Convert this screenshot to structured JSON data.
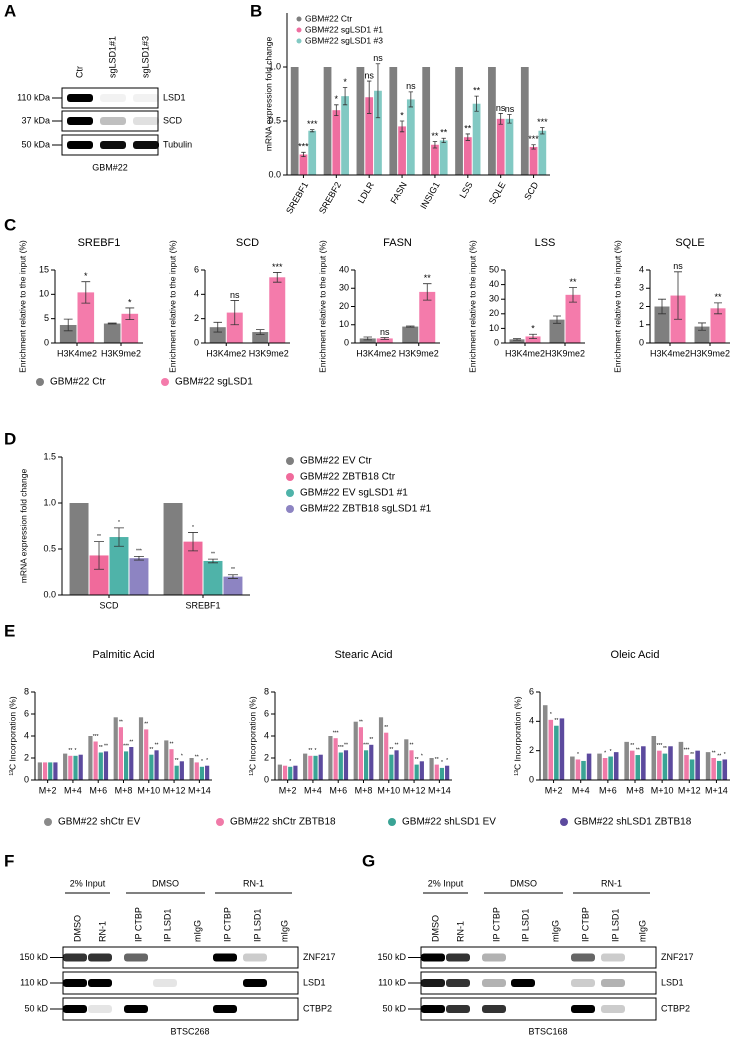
{
  "panel_labels": [
    "A",
    "B",
    "C",
    "D",
    "E",
    "F",
    "G"
  ],
  "blot_A": {
    "lanes": [
      "Ctr",
      "sgLSD1#1",
      "sgLSD1#3"
    ],
    "markers": [
      "110 kDa",
      "37 kDa",
      "50 kDa"
    ],
    "proteins": [
      "LSD1",
      "SCD",
      "Tubulin"
    ],
    "caption": "GBM#22"
  },
  "chart_data": [
    {
      "type": "bar",
      "y_label": "mRNA expression fold change",
      "legend": "top-left",
      "categories": [
        "SREBF1",
        "SREBF2",
        "LDLR",
        "FASN",
        "INSIG1",
        "LSS",
        "SQLE",
        "SCD"
      ],
      "ylim": [
        0,
        1.5
      ],
      "yticks": [
        {
          "value": 0,
          "label": "0.0"
        },
        {
          "value": 0.5,
          "label": "0.5"
        },
        {
          "value": 1,
          "label": "1.0"
        }
      ],
      "series": [
        {
          "name": "GBM#22 Ctr",
          "color": "#7f7f7f",
          "values": [
            1,
            1,
            1,
            1,
            1,
            1,
            1,
            1
          ]
        },
        {
          "name": "GBM#22 sgLSD1 #1",
          "color": "#ef6ea0",
          "values": [
            0.19,
            0.6,
            0.72,
            0.45,
            0.28,
            0.35,
            0.52,
            0.26
          ],
          "errors": [
            0.02,
            0.05,
            0.15,
            0.05,
            0.03,
            0.03,
            0.05,
            0.02
          ],
          "significance": [
            "***",
            "*",
            "ns",
            "*",
            "**",
            "**",
            "ns",
            "***"
          ]
        },
        {
          "name": "GBM#22 sgLSD1 #3",
          "color": "#82c9c3",
          "values": [
            0.41,
            0.73,
            0.78,
            0.7,
            0.32,
            0.66,
            0.52,
            0.41
          ],
          "errors": [
            0.01,
            0.08,
            0.25,
            0.07,
            0.02,
            0.07,
            0.04,
            0.03
          ],
          "significance": [
            "***",
            "*",
            "ns",
            "ns",
            "**",
            "**",
            "ns",
            "***"
          ]
        }
      ]
    },
    {
      "type": "bar",
      "title": "SREBF1",
      "y_label": "Enrichment relative to the input (%)",
      "legend": "bottom",
      "categories": [
        "H3K4me2",
        "H3K9me2"
      ],
      "ylim": [
        0,
        15
      ],
      "yticks": [
        0,
        5,
        10,
        15
      ],
      "series": [
        {
          "name": "GBM#22 Ctr",
          "color": "#7f7f7f",
          "values": [
            3.7,
            4.0
          ],
          "errors": [
            1.2,
            0.1
          ]
        },
        {
          "name": "GBM#22 sgLSD1",
          "color": "#f47bab",
          "values": [
            10.4,
            6.0
          ],
          "errors": [
            2.2,
            1.2
          ],
          "significance": [
            "*",
            "*"
          ]
        }
      ]
    },
    {
      "type": "bar",
      "title": "SCD",
      "y_label": "Enrichment relative to the input (%)",
      "categories": [
        "H3K4me2",
        "H3K9me2"
      ],
      "ylim": [
        0,
        6
      ],
      "yticks": [
        0,
        2,
        4,
        6
      ],
      "series": [
        {
          "name": "GBM#22 Ctr",
          "color": "#7f7f7f",
          "values": [
            1.3,
            0.9
          ],
          "errors": [
            0.4,
            0.2
          ]
        },
        {
          "name": "GBM#22 sgLSD1",
          "color": "#f47bab",
          "values": [
            2.5,
            5.4
          ],
          "errors": [
            1.0,
            0.4
          ],
          "significance": [
            "ns",
            "***"
          ]
        }
      ]
    },
    {
      "type": "bar",
      "title": "FASN",
      "y_label": "Enrichment relative to the input (%)",
      "categories": [
        "H3K4me2",
        "H3K9me2"
      ],
      "ylim": [
        0,
        40
      ],
      "yticks": [
        0,
        10,
        20,
        30,
        40
      ],
      "series": [
        {
          "name": "GBM#22 Ctr",
          "color": "#7f7f7f",
          "values": [
            2.5,
            9.0
          ],
          "errors": [
            0.8,
            0.3
          ]
        },
        {
          "name": "GBM#22 sgLSD1",
          "color": "#f47bab",
          "values": [
            2.5,
            28
          ],
          "errors": [
            0.5,
            4.5
          ],
          "significance": [
            "ns",
            "**"
          ]
        }
      ]
    },
    {
      "type": "bar",
      "title": "LSS",
      "y_label": "Enrichment relative to the input (%)",
      "categories": [
        "H3K4me2",
        "H3K9me2"
      ],
      "ylim": [
        0,
        50
      ],
      "yticks": [
        0,
        10,
        20,
        30,
        40,
        50
      ],
      "series": [
        {
          "name": "GBM#22 Ctr",
          "color": "#7f7f7f",
          "values": [
            2.5,
            16
          ],
          "errors": [
            0.5,
            2.5
          ]
        },
        {
          "name": "GBM#22 sgLSD1",
          "color": "#f47bab",
          "values": [
            4.5,
            33
          ],
          "errors": [
            1.5,
            5
          ],
          "significance": [
            "*",
            "**"
          ]
        }
      ]
    },
    {
      "type": "bar",
      "title": "SQLE",
      "y_label": "Enrichment relative to the input (%)",
      "categories": [
        "H3K4me2",
        "H3K9me2"
      ],
      "ylim": [
        0,
        4
      ],
      "yticks": [
        0,
        1,
        2,
        3,
        4
      ],
      "series": [
        {
          "name": "GBM#22 Ctr",
          "color": "#7f7f7f",
          "values": [
            2.0,
            0.9
          ],
          "errors": [
            0.4,
            0.2
          ]
        },
        {
          "name": "GBM#22 sgLSD1",
          "color": "#f47bab",
          "values": [
            2.6,
            1.9
          ],
          "errors": [
            1.3,
            0.3
          ],
          "significance": [
            "ns",
            "**"
          ]
        }
      ]
    },
    {
      "type": "bar",
      "y_label": "mRNA expression fold change",
      "legend": "right",
      "categories": [
        "SCD",
        "SREBF1"
      ],
      "ylim": [
        0,
        1.5
      ],
      "yticks": [
        {
          "value": 0,
          "label": "0.0"
        },
        {
          "value": 0.5,
          "label": "0.5"
        },
        {
          "value": 1,
          "label": "1.0"
        },
        {
          "value": 1.5,
          "label": "1.5"
        }
      ],
      "series": [
        {
          "name": "GBM#22 EV Ctr",
          "color": "#7f7f7f",
          "values": [
            1,
            1
          ]
        },
        {
          "name": "GBM#22 ZBTB18 Ctr",
          "color": "#f06a9b",
          "values": [
            0.43,
            0.58
          ],
          "errors": [
            0.15,
            0.1
          ],
          "significance": [
            "**",
            "*"
          ]
        },
        {
          "name": "GBM#22 EV sgLSD1 #1",
          "color": "#4fb3a9",
          "values": [
            0.63,
            0.37
          ],
          "errors": [
            0.1,
            0.02
          ],
          "significance": [
            "*",
            "**"
          ]
        },
        {
          "name": "GBM#22 ZBTB18 sgLSD1 #1",
          "color": "#8d84c2",
          "values": [
            0.4,
            0.2
          ],
          "errors": [
            0.02,
            0.02
          ],
          "significance": [
            "***",
            "**"
          ]
        }
      ]
    },
    {
      "type": "bar",
      "title": "Palmitic Acid",
      "y_label": "¹³C Incorporation (%)",
      "legend": "bottom",
      "categories": [
        "M+2",
        "M+4",
        "M+6",
        "M+8",
        "M+10",
        "M+12",
        "M+14"
      ],
      "ylim": [
        0,
        8
      ],
      "yticks": [
        0,
        2,
        4,
        6,
        8
      ],
      "series": [
        {
          "name": "GBM#22 shCtr EV",
          "color": "#8a8a8a",
          "values": [
            1.6,
            2.4,
            4.0,
            5.7,
            5.7,
            3.6,
            2.0
          ]
        },
        {
          "name": "GBM#22 shCtr ZBTB18",
          "color": "#f07aa8",
          "values": [
            1.6,
            2.2,
            3.5,
            4.8,
            4.6,
            2.8,
            1.6
          ],
          "significance": [
            null,
            "**",
            "***",
            "**",
            "**",
            "**",
            "**"
          ]
        },
        {
          "name": "GBM#22 shLSD1 EV",
          "color": "#3aa395",
          "values": [
            1.6,
            2.2,
            2.5,
            2.6,
            2.3,
            1.3,
            1.2
          ],
          "significance": [
            null,
            "*",
            "**",
            "***",
            "**",
            "**",
            "*"
          ]
        },
        {
          "name": "GBM#22 shLSD1 ZBTB18",
          "color": "#5c4a9e",
          "values": [
            1.6,
            2.3,
            2.6,
            3.0,
            2.7,
            1.7,
            1.3
          ],
          "significance": [
            null,
            null,
            "**",
            "**",
            "**",
            "*",
            "*"
          ]
        }
      ]
    },
    {
      "type": "bar",
      "title": "Stearic Acid",
      "y_label": "¹³C Incorporation (%)",
      "categories": [
        "M+2",
        "M+4",
        "M+6",
        "M+8",
        "M+10",
        "M+12",
        "M+14"
      ],
      "ylim": [
        0,
        8
      ],
      "yticks": [
        0,
        2,
        4,
        6,
        8
      ],
      "series": [
        {
          "name": "GBM#22 shCtr EV",
          "color": "#8a8a8a",
          "values": [
            1.4,
            2.4,
            4.0,
            5.3,
            5.7,
            3.7,
            2.0
          ]
        },
        {
          "name": "GBM#22 shCtr ZBTB18",
          "color": "#f07aa8",
          "values": [
            1.3,
            2.2,
            3.8,
            4.8,
            4.3,
            2.7,
            1.4
          ],
          "significance": [
            null,
            "**",
            "***",
            "**",
            "**",
            "**",
            "**"
          ]
        },
        {
          "name": "GBM#22 shLSD1 EV",
          "color": "#3aa395",
          "values": [
            1.2,
            2.2,
            2.5,
            2.7,
            2.3,
            1.4,
            1.1
          ],
          "significance": [
            "*",
            "*",
            "***",
            "***",
            "**",
            "**",
            "*"
          ]
        },
        {
          "name": "GBM#22 shLSD1 ZBTB18",
          "color": "#5c4a9e",
          "values": [
            1.3,
            2.3,
            2.7,
            3.2,
            2.7,
            1.7,
            1.3
          ],
          "significance": [
            null,
            null,
            "**",
            "**",
            "**",
            "*",
            "*"
          ]
        }
      ]
    },
    {
      "type": "bar",
      "title": "Oleic Acid",
      "y_label": "¹³C Incorporation (%)",
      "categories": [
        "M+2",
        "M+4",
        "M+6",
        "M+8",
        "M+10",
        "M+12",
        "M+14"
      ],
      "ylim": [
        0,
        6
      ],
      "yticks": [
        0,
        2,
        4,
        6
      ],
      "series": [
        {
          "name": "GBM#22 shCtr EV",
          "color": "#8a8a8a",
          "values": [
            5.1,
            1.6,
            1.8,
            2.6,
            3.0,
            2.6,
            1.9
          ]
        },
        {
          "name": "GBM#22 shCtr ZBTB18",
          "color": "#f07aa8",
          "values": [
            4.1,
            1.4,
            1.5,
            2.0,
            2.0,
            1.7,
            1.5
          ],
          "significance": [
            "*",
            "*",
            "*",
            "**",
            "***",
            "***",
            "**"
          ]
        },
        {
          "name": "GBM#22 shLSD1 EV",
          "color": "#3aa395",
          "values": [
            3.7,
            1.3,
            1.6,
            1.7,
            1.8,
            1.4,
            1.3
          ],
          "significance": [
            "**",
            null,
            "*",
            "**",
            "**",
            "**",
            "**"
          ]
        },
        {
          "name": "GBM#22 shLSD1 ZBTB18",
          "color": "#5c4a9e",
          "values": [
            4.2,
            1.8,
            1.9,
            2.3,
            2.3,
            2.0,
            1.4
          ],
          "significance": [
            null,
            null,
            null,
            null,
            null,
            null,
            "*"
          ]
        }
      ]
    }
  ],
  "blot_F": {
    "groups": [
      "2% Input",
      "DMSO",
      "RN-1"
    ],
    "lanes": [
      "DMSO",
      "RN-1",
      "IP CTBP",
      "IP LSD1",
      "mIgG",
      "IP CTBP",
      "IP LSD1",
      "mIgG"
    ],
    "markers": [
      "150 kD",
      "110 kD",
      "50 kD"
    ],
    "proteins": [
      "ZNF217",
      "LSD1",
      "CTBP2"
    ],
    "caption": "BTSC268"
  },
  "blot_G": {
    "groups": [
      "2% Input",
      "DMSO",
      "RN-1"
    ],
    "lanes": [
      "DMSO",
      "RN-1",
      "IP CTBP",
      "IP LSD1",
      "mIgG",
      "IP CTBP",
      "IP LSD1",
      "mIgG"
    ],
    "markers": [
      "150 kD",
      "110 kD",
      "50 kD"
    ],
    "proteins": [
      "ZNF217",
      "LSD1",
      "CTBP2"
    ],
    "caption": "BTSC168"
  }
}
